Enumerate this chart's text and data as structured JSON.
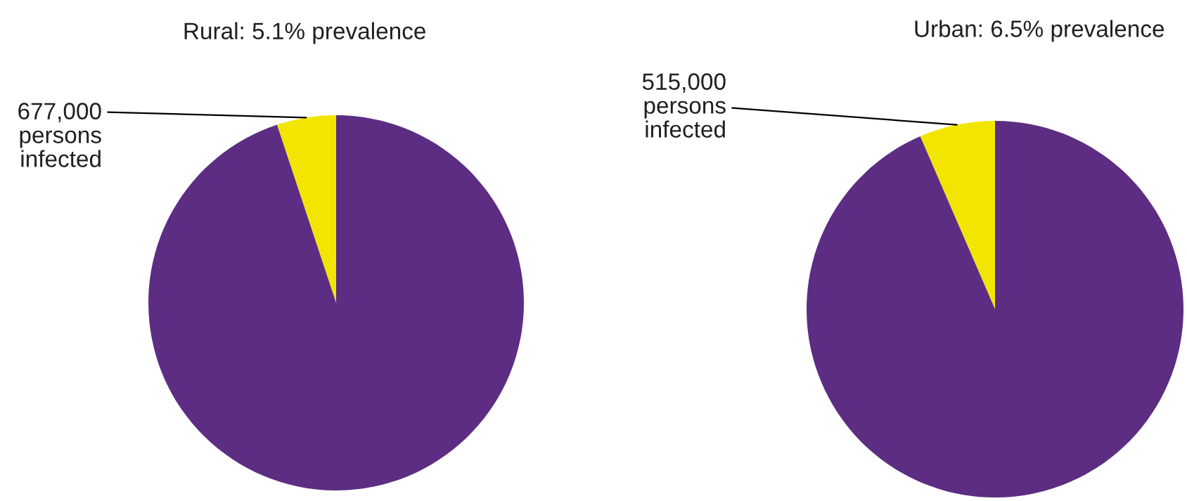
{
  "chart_data": [
    {
      "type": "pie",
      "title": "Rural: 5.1% prevalence",
      "categories": [
        "677,000\npersons\ninfected",
        null
      ],
      "values": [
        5.1,
        94.9
      ],
      "colors": [
        "#f2e600",
        "#5c2d83"
      ]
    },
    {
      "type": "pie",
      "title": "Urban: 6.5% prevalence",
      "categories": [
        "515,000\npersons\ninfected",
        null
      ],
      "values": [
        6.5,
        93.5
      ],
      "colors": [
        "#f2e600",
        "#5c2d83"
      ]
    }
  ]
}
